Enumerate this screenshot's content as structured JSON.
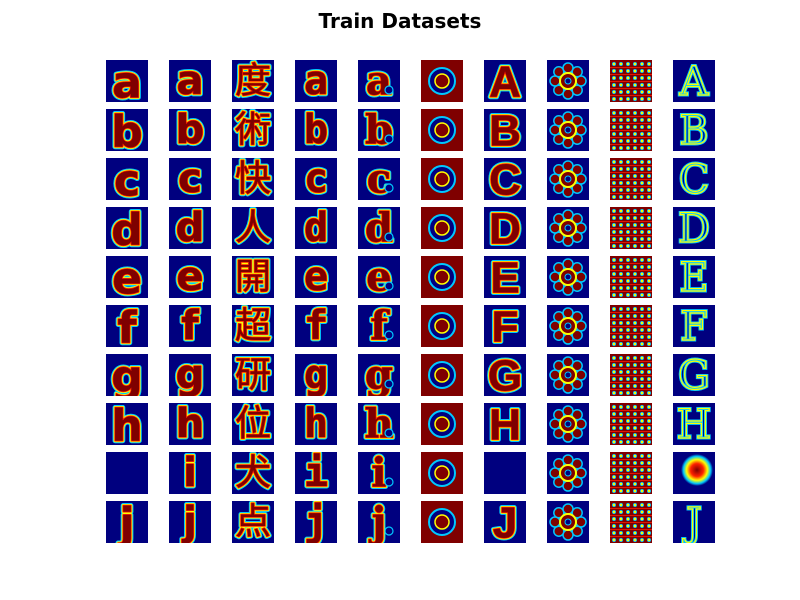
{
  "figure": {
    "title": "Train Datasets"
  },
  "colors": {
    "background": "#00007f",
    "foreground": "#7f0000",
    "edge_outer": "#00c8ff",
    "edge_mid": "#ffff00",
    "edge_inner": "#ff2000"
  },
  "grid": {
    "rows": 10,
    "columns": 10,
    "row_glyphs": [
      "a",
      "b",
      "c",
      "d",
      "e",
      "f",
      "g",
      "h",
      "i",
      "j"
    ],
    "column_style_descriptions": [
      "angular",
      "rounded",
      "chinese",
      "square",
      "decorative",
      "circle",
      "block",
      "ornament",
      "pattern",
      "outline"
    ],
    "chinese_column_chars": [
      "度",
      "術",
      "快",
      "人",
      "開",
      "超",
      "研",
      "位",
      "犬",
      "点"
    ]
  }
}
